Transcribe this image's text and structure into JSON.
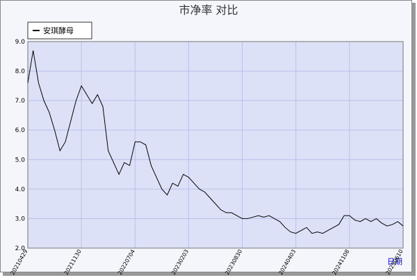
{
  "chart_data": {
    "type": "line",
    "title": "市净率  对比",
    "x_label": "日期",
    "categories": [
      "20210429",
      null,
      null,
      null,
      null,
      null,
      null,
      null,
      null,
      null,
      "20211130",
      null,
      null,
      null,
      null,
      null,
      null,
      null,
      null,
      null,
      "20220704",
      null,
      null,
      null,
      null,
      null,
      null,
      null,
      null,
      null,
      "20230203",
      null,
      null,
      null,
      null,
      null,
      null,
      null,
      null,
      null,
      "20230830",
      null,
      null,
      null,
      null,
      null,
      null,
      null,
      null,
      null,
      "20240403",
      null,
      null,
      null,
      null,
      null,
      null,
      null,
      null,
      null,
      "20241108",
      null,
      null,
      null,
      null,
      null,
      null,
      null,
      null,
      null,
      "20250610"
    ],
    "series": [
      {
        "name": "安琪酵母",
        "color": "#000000",
        "values": [
          7.6,
          8.7,
          7.6,
          7.0,
          6.6,
          6.0,
          5.3,
          5.6,
          6.3,
          7.0,
          7.5,
          7.2,
          6.9,
          7.2,
          6.8,
          5.3,
          4.9,
          4.5,
          4.9,
          4.8,
          5.6,
          5.6,
          5.5,
          4.8,
          4.4,
          4.0,
          3.8,
          4.2,
          4.1,
          4.5,
          4.4,
          4.2,
          4.0,
          3.9,
          3.7,
          3.5,
          3.3,
          3.2,
          3.2,
          3.1,
          3.0,
          3.0,
          3.05,
          3.1,
          3.05,
          3.1,
          3.0,
          2.9,
          2.7,
          2.55,
          2.5,
          2.6,
          2.7,
          2.5,
          2.55,
          2.5,
          2.6,
          2.7,
          2.8,
          3.1,
          3.1,
          2.95,
          2.9,
          3.0,
          2.9,
          3.0,
          2.85,
          2.75,
          2.8,
          2.9,
          2.75
        ]
      }
    ],
    "ylim": [
      2.0,
      9.0
    ],
    "yticks": [
      {
        "value": 2,
        "label": "2.0"
      },
      {
        "value": 3,
        "label": "3.0"
      },
      {
        "value": 4,
        "label": "4.0"
      },
      {
        "value": 5,
        "label": "5.0"
      },
      {
        "value": 6,
        "label": "6.0"
      },
      {
        "value": 7,
        "label": "7.0"
      },
      {
        "value": 8,
        "label": "8.0"
      },
      {
        "value": 9,
        "label": "9.0"
      }
    ],
    "grid": true
  }
}
